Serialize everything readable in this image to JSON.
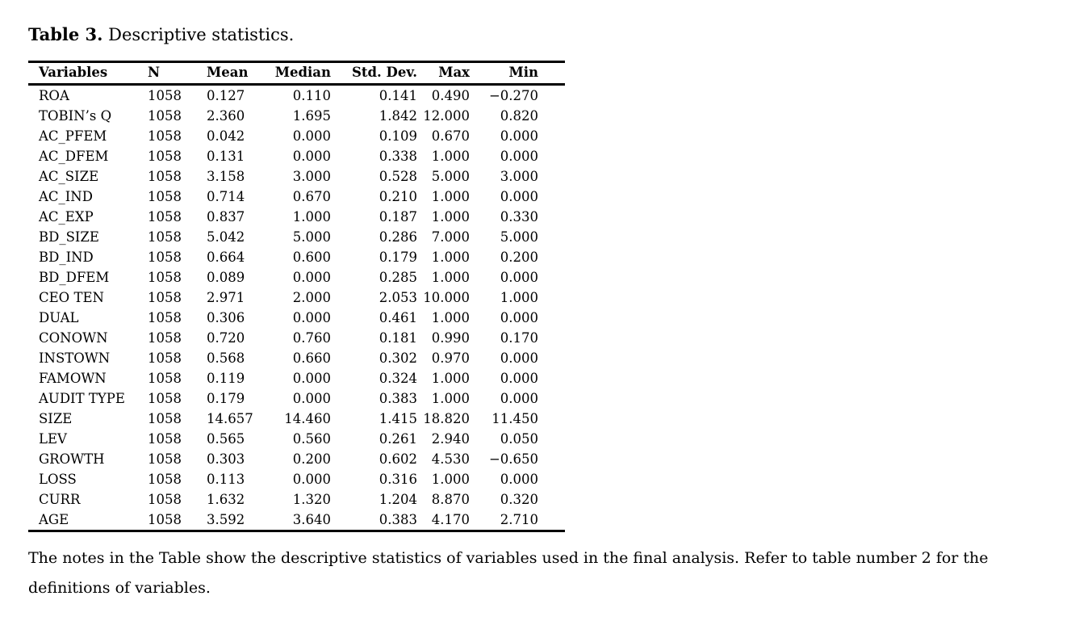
{
  "title": {
    "label": "Table 3.",
    "text": "Descriptive statistics."
  },
  "table": {
    "columns": [
      "Variables",
      "N",
      "Mean",
      "Median",
      "Std. Dev.",
      "Max",
      "Min"
    ],
    "rows": [
      [
        "ROA",
        "1058",
        "0.127",
        "0.110",
        "0.141",
        "0.490",
        "−0.270"
      ],
      [
        "TOBIN’s Q",
        "1058",
        "2.360",
        "1.695",
        "1.842",
        "12.000",
        "0.820"
      ],
      [
        "AC_PFEM",
        "1058",
        "0.042",
        "0.000",
        "0.109",
        "0.670",
        "0.000"
      ],
      [
        "AC_DFEM",
        "1058",
        "0.131",
        "0.000",
        "0.338",
        "1.000",
        "0.000"
      ],
      [
        "AC_SIZE",
        "1058",
        "3.158",
        "3.000",
        "0.528",
        "5.000",
        "3.000"
      ],
      [
        "AC_IND",
        "1058",
        "0.714",
        "0.670",
        "0.210",
        "1.000",
        "0.000"
      ],
      [
        "AC_EXP",
        "1058",
        "0.837",
        "1.000",
        "0.187",
        "1.000",
        "0.330"
      ],
      [
        "BD_SIZE",
        "1058",
        "5.042",
        "5.000",
        "0.286",
        "7.000",
        "5.000"
      ],
      [
        "BD_IND",
        "1058",
        "0.664",
        "0.600",
        "0.179",
        "1.000",
        "0.200"
      ],
      [
        "BD_DFEM",
        "1058",
        "0.089",
        "0.000",
        "0.285",
        "1.000",
        "0.000"
      ],
      [
        "CEO TEN",
        "1058",
        "2.971",
        "2.000",
        "2.053",
        "10.000",
        "1.000"
      ],
      [
        "DUAL",
        "1058",
        "0.306",
        "0.000",
        "0.461",
        "1.000",
        "0.000"
      ],
      [
        "CONOWN",
        "1058",
        "0.720",
        "0.760",
        "0.181",
        "0.990",
        "0.170"
      ],
      [
        "INSTOWN",
        "1058",
        "0.568",
        "0.660",
        "0.302",
        "0.970",
        "0.000"
      ],
      [
        "FAMOWN",
        "1058",
        "0.119",
        "0.000",
        "0.324",
        "1.000",
        "0.000"
      ],
      [
        "AUDIT TYPE",
        "1058",
        "0.179",
        "0.000",
        "0.383",
        "1.000",
        "0.000"
      ],
      [
        "SIZE",
        "1058",
        "14.657",
        "14.460",
        "1.415",
        "18.820",
        "11.450"
      ],
      [
        "LEV",
        "1058",
        "0.565",
        "0.560",
        "0.261",
        "2.940",
        "0.050"
      ],
      [
        "GROWTH",
        "1058",
        "0.303",
        "0.200",
        "0.602",
        "4.530",
        "−0.650"
      ],
      [
        "LOSS",
        "1058",
        "0.113",
        "0.000",
        "0.316",
        "1.000",
        "0.000"
      ],
      [
        "CURR",
        "1058",
        "1.632",
        "1.320",
        "1.204",
        "8.870",
        "0.320"
      ],
      [
        "AGE",
        "1058",
        "3.592",
        "3.640",
        "0.383",
        "4.170",
        "2.710"
      ]
    ]
  },
  "notes": "The notes in the Table show the descriptive statistics of variables used in the final analysis. Refer to table number 2 for the definitions of variables.",
  "colors": {
    "text": "#000000",
    "background": "#ffffff",
    "rule": "#000000"
  }
}
